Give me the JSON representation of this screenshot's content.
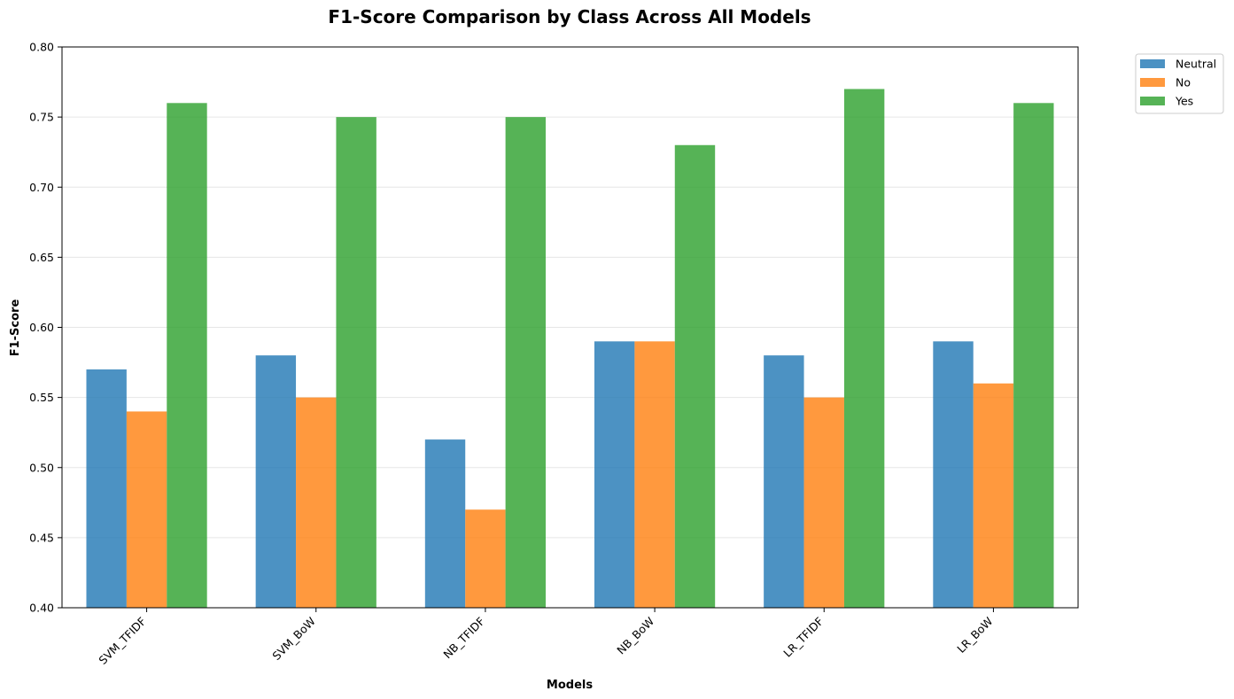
{
  "chart_data": {
    "type": "bar",
    "title": "F1-Score Comparison by Class Across All Models",
    "xlabel": "Models",
    "ylabel": "F1-Score",
    "categories": [
      "SVM_TFIDF",
      "SVM_BoW",
      "NB_TFIDF",
      "NB_BoW",
      "LR_TFIDF",
      "LR_BoW"
    ],
    "series": [
      {
        "name": "Neutral",
        "color": "#1f77b4",
        "values": [
          0.57,
          0.58,
          0.52,
          0.59,
          0.58,
          0.59
        ]
      },
      {
        "name": "No",
        "color": "#ff7f0e",
        "values": [
          0.54,
          0.55,
          0.47,
          0.59,
          0.55,
          0.56
        ]
      },
      {
        "name": "Yes",
        "color": "#2ca02c",
        "values": [
          0.76,
          0.75,
          0.75,
          0.73,
          0.77,
          0.76
        ]
      }
    ],
    "ylim": [
      0.4,
      0.8
    ],
    "yticks": [
      "0.40",
      "0.45",
      "0.50",
      "0.55",
      "0.60",
      "0.65",
      "0.70",
      "0.75",
      "0.80"
    ],
    "grid": "y",
    "legend_position": "outside-top-right"
  }
}
